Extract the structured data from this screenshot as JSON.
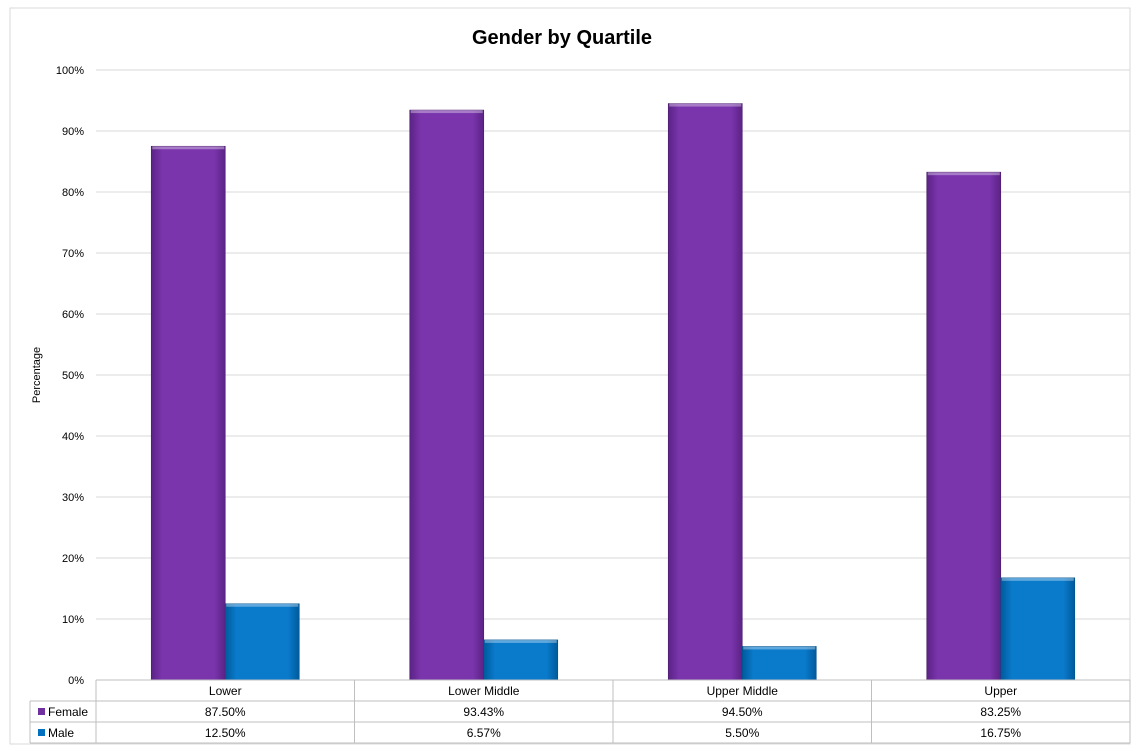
{
  "chart_data": {
    "type": "bar",
    "title": "Gender by Quartile",
    "xlabel": "",
    "ylabel": "Percentage",
    "ylim": [
      0,
      100
    ],
    "yticks": [
      "0%",
      "10%",
      "20%",
      "30%",
      "40%",
      "50%",
      "60%",
      "70%",
      "80%",
      "90%",
      "100%"
    ],
    "grid": true,
    "legend_placement": "data table",
    "categories": [
      "Lower",
      "Lower Middle",
      "Upper Middle",
      "Upper"
    ],
    "series": [
      {
        "name": "Female",
        "color": "#7030A0",
        "values": [
          87.5,
          93.43,
          94.5,
          83.25
        ],
        "labels": [
          "87.50%",
          "93.43%",
          "94.50%",
          "83.25%"
        ]
      },
      {
        "name": "Male",
        "color": "#0070C0",
        "values": [
          12.5,
          6.57,
          5.5,
          16.75
        ],
        "labels": [
          "12.50%",
          "6.57%",
          "5.50%",
          "16.75%"
        ]
      }
    ]
  }
}
